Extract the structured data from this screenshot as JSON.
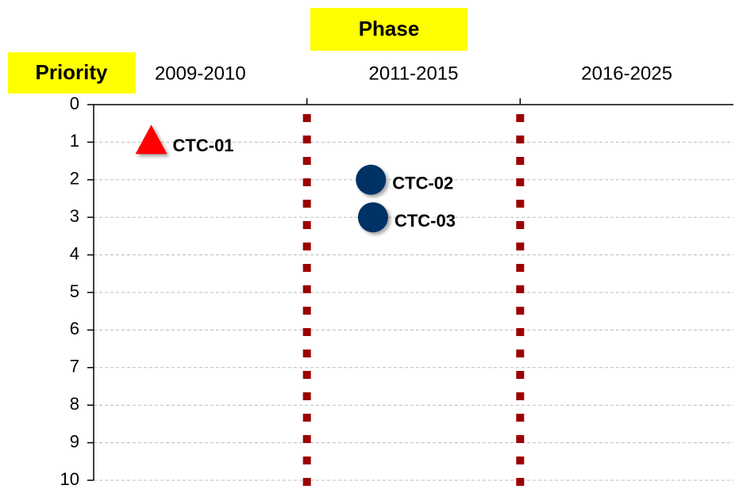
{
  "chart_data": {
    "type": "scatter",
    "x_label": "Phase",
    "y_label": "Priority",
    "categories": [
      "2009-2010",
      "2011-2015",
      "2016-2025"
    ],
    "xlim": [
      0,
      3
    ],
    "labels": [
      "CTC-01",
      "CTC-02",
      "CTC-03"
    ],
    "x": [
      0.27,
      1.3,
      1.31
    ],
    "values": [
      1,
      2,
      3
    ],
    "markers": [
      "triangle",
      "circle",
      "circle"
    ],
    "colors": [
      "#ff0000",
      "#003366",
      "#003366"
    ],
    "ylim": [
      0,
      10
    ],
    "yticks": [
      0,
      1,
      2,
      3,
      4,
      5,
      6,
      7,
      8,
      9,
      10
    ],
    "y_inverted": true,
    "grid": true,
    "divider_color": "#9b0000"
  }
}
